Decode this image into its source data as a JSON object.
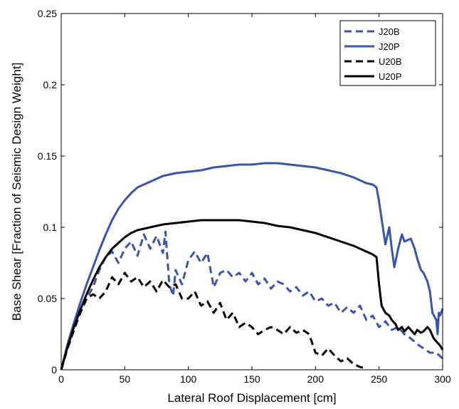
{
  "chart_data": {
    "type": "line",
    "title": "",
    "xlabel": "Lateral Roof Displacement [cm]",
    "ylabel": "Base Shear [Fraction of Seismic Design Weight]",
    "xlim": [
      0,
      300
    ],
    "ylim": [
      0,
      0.25
    ],
    "xticks": [
      "0",
      "50",
      "100",
      "150",
      "200",
      "250",
      "300"
    ],
    "yticks": [
      "0",
      "0.05",
      "0.1",
      "0.15",
      "0.2",
      "0.25"
    ],
    "grid": false,
    "legend_position": "top-right",
    "series": [
      {
        "name": "J20B",
        "color": "#3a55a5",
        "dash": "dashed",
        "x": [
          0,
          5,
          10,
          15,
          20,
          25,
          30,
          35,
          40,
          45,
          50,
          55,
          60,
          65,
          70,
          75,
          80,
          82,
          85,
          88,
          90,
          95,
          100,
          105,
          110,
          115,
          120,
          125,
          130,
          135,
          140,
          145,
          150,
          155,
          160,
          165,
          170,
          175,
          180,
          185,
          190,
          195,
          200,
          205,
          210,
          215,
          220,
          225,
          230,
          235,
          240,
          245,
          250,
          255,
          260,
          265,
          270,
          275,
          280,
          285,
          290,
          295,
          300
        ],
        "y": [
          0,
          0.015,
          0.028,
          0.04,
          0.05,
          0.058,
          0.07,
          0.079,
          0.083,
          0.075,
          0.085,
          0.09,
          0.08,
          0.095,
          0.085,
          0.094,
          0.082,
          0.097,
          0.06,
          0.052,
          0.07,
          0.06,
          0.077,
          0.083,
          0.075,
          0.082,
          0.058,
          0.068,
          0.07,
          0.065,
          0.068,
          0.062,
          0.068,
          0.06,
          0.064,
          0.057,
          0.062,
          0.06,
          0.055,
          0.058,
          0.052,
          0.055,
          0.048,
          0.05,
          0.045,
          0.047,
          0.04,
          0.044,
          0.04,
          0.045,
          0.035,
          0.038,
          0.03,
          0.034,
          0.028,
          0.03,
          0.025,
          0.022,
          0.018,
          0.015,
          0.012,
          0.012,
          0.008
        ]
      },
      {
        "name": "J20P",
        "color": "#3a55a5",
        "dash": "solid",
        "x": [
          0,
          5,
          10,
          15,
          20,
          25,
          30,
          35,
          40,
          45,
          50,
          55,
          60,
          65,
          70,
          75,
          80,
          90,
          100,
          110,
          120,
          130,
          140,
          150,
          160,
          170,
          180,
          190,
          200,
          210,
          220,
          230,
          240,
          245,
          248,
          250,
          253,
          255,
          258,
          260,
          262,
          265,
          268,
          270,
          275,
          278,
          280,
          283,
          285,
          288,
          290,
          292,
          295,
          296,
          297,
          298,
          300
        ],
        "y": [
          0,
          0.018,
          0.033,
          0.047,
          0.06,
          0.072,
          0.084,
          0.095,
          0.105,
          0.113,
          0.119,
          0.124,
          0.128,
          0.13,
          0.132,
          0.134,
          0.136,
          0.138,
          0.139,
          0.14,
          0.142,
          0.143,
          0.144,
          0.144,
          0.145,
          0.145,
          0.144,
          0.143,
          0.142,
          0.14,
          0.138,
          0.135,
          0.131,
          0.13,
          0.128,
          0.118,
          0.1,
          0.088,
          0.1,
          0.085,
          0.072,
          0.085,
          0.095,
          0.09,
          0.092,
          0.085,
          0.078,
          0.07,
          0.068,
          0.062,
          0.055,
          0.04,
          0.035,
          0.025,
          0.04,
          0.038,
          0.043
        ]
      },
      {
        "name": "U20B",
        "color": "#000000",
        "dash": "dashed",
        "x": [
          0,
          5,
          10,
          15,
          20,
          25,
          30,
          35,
          40,
          45,
          50,
          55,
          60,
          65,
          70,
          75,
          80,
          85,
          90,
          95,
          100,
          105,
          110,
          115,
          120,
          125,
          130,
          135,
          140,
          145,
          150,
          155,
          160,
          165,
          170,
          175,
          180,
          185,
          190,
          195,
          200,
          205,
          210,
          215,
          220,
          225,
          230,
          235,
          240
        ],
        "y": [
          0,
          0.015,
          0.028,
          0.04,
          0.05,
          0.053,
          0.05,
          0.055,
          0.065,
          0.06,
          0.068,
          0.062,
          0.065,
          0.058,
          0.062,
          0.055,
          0.063,
          0.058,
          0.06,
          0.05,
          0.05,
          0.055,
          0.045,
          0.048,
          0.04,
          0.047,
          0.035,
          0.04,
          0.03,
          0.033,
          0.03,
          0.025,
          0.028,
          0.03,
          0.028,
          0.025,
          0.03,
          0.026,
          0.028,
          0.025,
          0.012,
          0.01,
          0.015,
          0.01,
          0.006,
          0.008,
          0.004,
          0.002,
          0.001
        ]
      },
      {
        "name": "U20P",
        "color": "#000000",
        "dash": "solid",
        "x": [
          0,
          5,
          10,
          15,
          20,
          25,
          30,
          35,
          40,
          45,
          50,
          55,
          60,
          65,
          70,
          75,
          80,
          90,
          100,
          110,
          120,
          130,
          140,
          150,
          160,
          170,
          180,
          190,
          200,
          210,
          220,
          230,
          240,
          245,
          248,
          250,
          252,
          255,
          258,
          260,
          263,
          265,
          268,
          270,
          273,
          275,
          278,
          280,
          283,
          285,
          288,
          290,
          293,
          295,
          298,
          300
        ],
        "y": [
          0,
          0.016,
          0.03,
          0.042,
          0.053,
          0.063,
          0.072,
          0.079,
          0.085,
          0.089,
          0.093,
          0.096,
          0.098,
          0.099,
          0.1,
          0.101,
          0.102,
          0.103,
          0.104,
          0.105,
          0.105,
          0.105,
          0.105,
          0.104,
          0.103,
          0.101,
          0.1,
          0.098,
          0.096,
          0.093,
          0.09,
          0.087,
          0.083,
          0.081,
          0.079,
          0.06,
          0.045,
          0.04,
          0.038,
          0.035,
          0.032,
          0.028,
          0.03,
          0.027,
          0.03,
          0.028,
          0.025,
          0.028,
          0.026,
          0.027,
          0.03,
          0.028,
          0.022,
          0.02,
          0.017,
          0.014
        ]
      }
    ]
  }
}
